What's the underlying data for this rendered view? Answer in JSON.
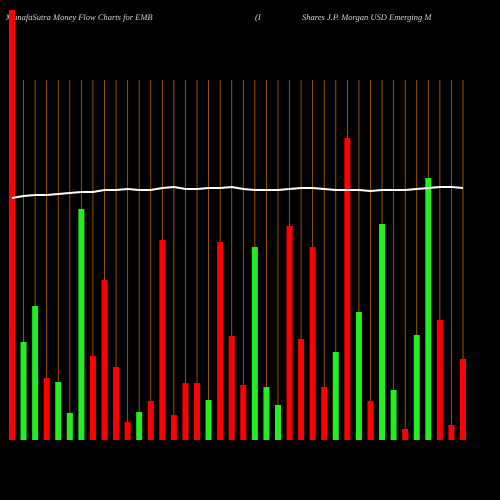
{
  "chart_data": {
    "type": "bar",
    "title": "MunafaSutra  Money Flow  Charts for EMB",
    "subtitle": "(I",
    "annotation": "Shares J.P. Morgan  USD Emerging M",
    "values": [
      430,
      98,
      134,
      62,
      58,
      27,
      231,
      84,
      160,
      73,
      18,
      28,
      39,
      200,
      25,
      57,
      57,
      40,
      198,
      104,
      55,
      193,
      53,
      35,
      214,
      101,
      193,
      53,
      88,
      302,
      128,
      39,
      216,
      50,
      11,
      105,
      262,
      120,
      15,
      81
    ],
    "colors": [
      "#ff0000",
      "#22ee22",
      "#22ee22",
      "#ff0000",
      "#22ee22",
      "#22ee22",
      "#22ee22",
      "#ff0000",
      "#ff0000",
      "#ff0000",
      "#ff0000",
      "#22ee22",
      "#ff0000",
      "#ff0000",
      "#ff0000",
      "#ff0000",
      "#ff0000",
      "#22ee22",
      "#ff0000",
      "#ff0000",
      "#ff0000",
      "#22ee22",
      "#22ee22",
      "#22ee22",
      "#ff0000",
      "#ff0000",
      "#ff0000",
      "#ff0000",
      "#22ee22",
      "#ff0000",
      "#22ee22",
      "#ff0000",
      "#22ee22",
      "#22ee22",
      "#ff0000",
      "#22ee22",
      "#22ee22",
      "#ff0000",
      "#ff0000",
      "#ff0000"
    ],
    "line": {
      "color": "#ffffff",
      "values": [
        242,
        244,
        245,
        245,
        246,
        247,
        248,
        248,
        250,
        250,
        251,
        250,
        250,
        252,
        253,
        251,
        251,
        252,
        252,
        253,
        251,
        250,
        250,
        250,
        251,
        252,
        252,
        251,
        250,
        250,
        250,
        249,
        250,
        250,
        250,
        251,
        252,
        253,
        253,
        252
      ]
    },
    "ylim": [
      0,
      430
    ],
    "grid": true,
    "grid_color": "#b8660b"
  }
}
